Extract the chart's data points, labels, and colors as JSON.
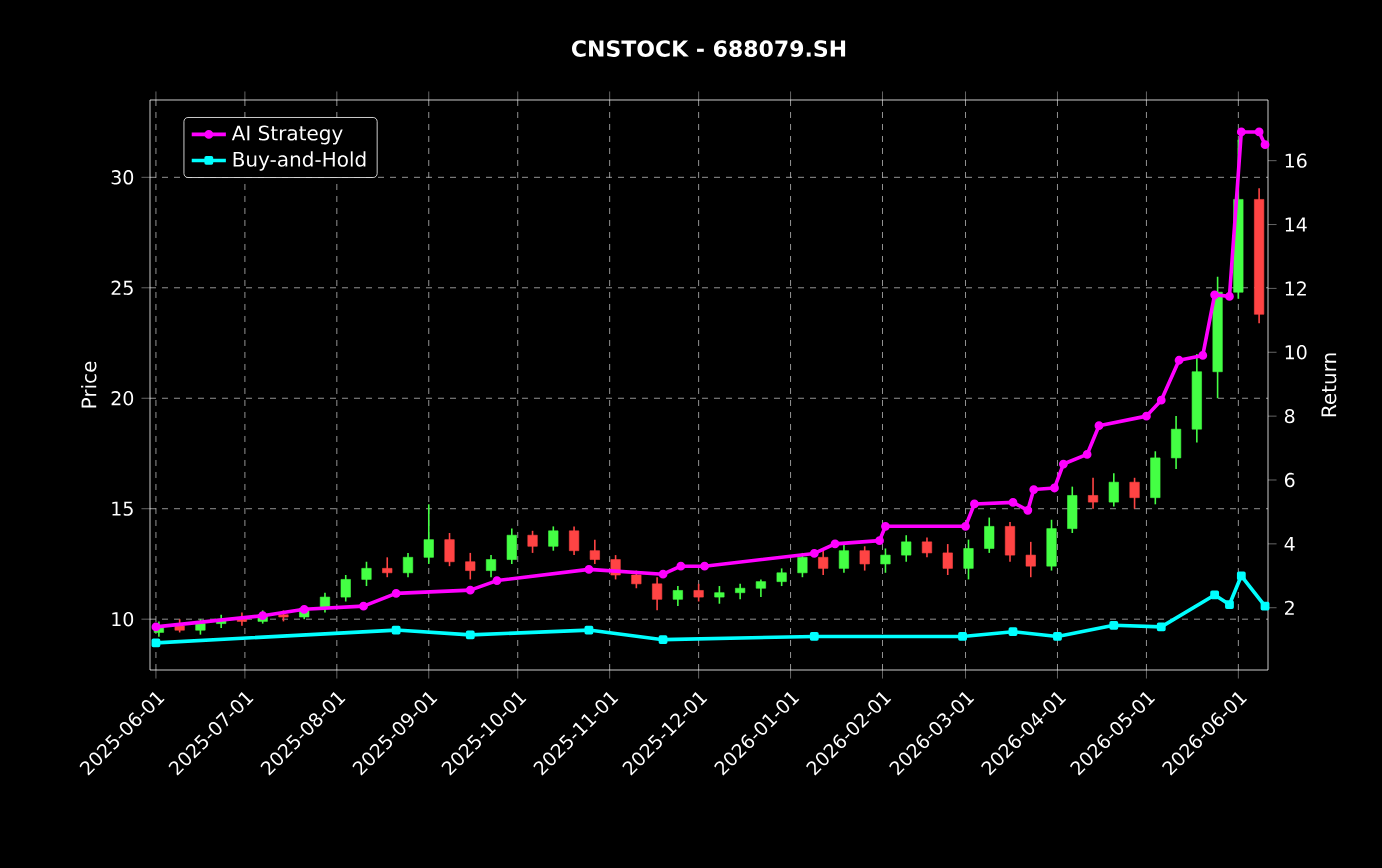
{
  "chart_data": {
    "type": "candlestick",
    "title": "CNSTOCK - 688079.SH",
    "ylabel": "Price",
    "y2label": "Return",
    "x": [
      "2025-06-02",
      "2025-06-09",
      "2025-06-16",
      "2025-06-23",
      "2025-06-30",
      "2025-07-07",
      "2025-07-14",
      "2025-07-21",
      "2025-07-28",
      "2025-08-04",
      "2025-08-11",
      "2025-08-18",
      "2025-08-25",
      "2025-09-01",
      "2025-09-08",
      "2025-09-15",
      "2025-09-22",
      "2025-09-29",
      "2025-10-06",
      "2025-10-13",
      "2025-10-20",
      "2025-10-27",
      "2025-11-03",
      "2025-11-10",
      "2025-11-17",
      "2025-11-24",
      "2025-12-01",
      "2025-12-08",
      "2025-12-15",
      "2025-12-22",
      "2025-12-29",
      "2026-01-05",
      "2026-01-12",
      "2026-01-19",
      "2026-01-26",
      "2026-02-02",
      "2026-02-09",
      "2026-02-16",
      "2026-02-23",
      "2026-03-02",
      "2026-03-09",
      "2026-03-16",
      "2026-03-23",
      "2026-03-30",
      "2026-04-06",
      "2026-04-13",
      "2026-04-20",
      "2026-04-27",
      "2026-05-04",
      "2026-05-11",
      "2026-05-18",
      "2026-05-25",
      "2026-06-01",
      "2026-06-08"
    ],
    "ohlc": [
      [
        9.4,
        9.9,
        9.2,
        9.7
      ],
      [
        9.7,
        10.0,
        9.4,
        9.5
      ],
      [
        9.5,
        10.0,
        9.3,
        9.8
      ],
      [
        9.8,
        10.2,
        9.6,
        10.0
      ],
      [
        10.0,
        10.3,
        9.7,
        9.9
      ],
      [
        9.9,
        10.4,
        9.8,
        10.2
      ],
      [
        10.2,
        10.4,
        9.9,
        10.1
      ],
      [
        10.1,
        10.6,
        10.0,
        10.5
      ],
      [
        10.5,
        11.2,
        10.3,
        11.0
      ],
      [
        11.0,
        12.0,
        10.8,
        11.8
      ],
      [
        11.8,
        12.6,
        11.5,
        12.3
      ],
      [
        12.3,
        12.8,
        11.9,
        12.1
      ],
      [
        12.1,
        13.0,
        11.9,
        12.8
      ],
      [
        12.8,
        15.2,
        12.5,
        13.6
      ],
      [
        13.6,
        13.9,
        12.4,
        12.6
      ],
      [
        12.6,
        13.0,
        11.8,
        12.2
      ],
      [
        12.2,
        12.9,
        11.9,
        12.7
      ],
      [
        12.7,
        14.1,
        12.5,
        13.8
      ],
      [
        13.8,
        14.0,
        13.0,
        13.3
      ],
      [
        13.3,
        14.2,
        13.1,
        14.0
      ],
      [
        14.0,
        14.2,
        12.9,
        13.1
      ],
      [
        13.1,
        13.6,
        12.5,
        12.7
      ],
      [
        12.7,
        12.9,
        11.8,
        12.0
      ],
      [
        12.0,
        12.2,
        11.4,
        11.6
      ],
      [
        11.6,
        11.9,
        10.4,
        10.9
      ],
      [
        10.9,
        11.5,
        10.6,
        11.3
      ],
      [
        11.3,
        11.6,
        10.8,
        11.0
      ],
      [
        11.0,
        11.5,
        10.7,
        11.2
      ],
      [
        11.2,
        11.6,
        10.9,
        11.4
      ],
      [
        11.4,
        11.8,
        11.0,
        11.7
      ],
      [
        11.7,
        12.3,
        11.5,
        12.1
      ],
      [
        12.1,
        13.0,
        11.9,
        12.8
      ],
      [
        12.8,
        13.1,
        12.0,
        12.3
      ],
      [
        12.3,
        13.4,
        12.1,
        13.1
      ],
      [
        13.1,
        13.3,
        12.2,
        12.5
      ],
      [
        12.5,
        13.2,
        12.1,
        12.9
      ],
      [
        12.9,
        13.8,
        12.6,
        13.5
      ],
      [
        13.5,
        13.7,
        12.8,
        13.0
      ],
      [
        13.0,
        13.4,
        12.0,
        12.3
      ],
      [
        12.3,
        13.6,
        11.8,
        13.2
      ],
      [
        13.2,
        14.6,
        13.0,
        14.2
      ],
      [
        14.2,
        14.4,
        12.6,
        12.9
      ],
      [
        12.9,
        13.5,
        11.9,
        12.4
      ],
      [
        12.4,
        14.5,
        12.2,
        14.1
      ],
      [
        14.1,
        16.0,
        13.9,
        15.6
      ],
      [
        15.6,
        16.4,
        15.0,
        15.3
      ],
      [
        15.3,
        16.6,
        15.1,
        16.2
      ],
      [
        16.2,
        16.4,
        15.0,
        15.5
      ],
      [
        15.5,
        17.6,
        15.2,
        17.3
      ],
      [
        17.3,
        19.2,
        16.8,
        18.6
      ],
      [
        18.6,
        22.0,
        18.0,
        21.2
      ],
      [
        21.2,
        25.5,
        20.0,
        24.8
      ],
      [
        24.8,
        31.7,
        24.5,
        29.0
      ],
      [
        29.0,
        29.5,
        23.4,
        23.8
      ]
    ],
    "colors": [
      "#44ff44",
      "#ff4444",
      "#44ff44",
      "#44ff44",
      "#ff4444",
      "#44ff44",
      "#ff4444",
      "#44ff44",
      "#44ff44",
      "#44ff44",
      "#44ff44",
      "#ff4444",
      "#44ff44",
      "#44ff44",
      "#ff4444",
      "#ff4444",
      "#44ff44",
      "#44ff44",
      "#ff4444",
      "#44ff44",
      "#ff4444",
      "#ff4444",
      "#ff4444",
      "#ff4444",
      "#ff4444",
      "#44ff44",
      "#ff4444",
      "#44ff44",
      "#44ff44",
      "#44ff44",
      "#44ff44",
      "#44ff44",
      "#ff4444",
      "#44ff44",
      "#ff4444",
      "#44ff44",
      "#44ff44",
      "#ff4444",
      "#ff4444",
      "#44ff44",
      "#44ff44",
      "#ff4444",
      "#ff4444",
      "#44ff44",
      "#44ff44",
      "#ff4444",
      "#44ff44",
      "#ff4444",
      "#44ff44",
      "#44ff44",
      "#44ff44",
      "#44ff44",
      "#44ff44",
      "#ff4444"
    ],
    "series": [
      {
        "name": "AI Strategy",
        "type": "line",
        "axis": "y2",
        "color": "#ff00ff",
        "marker": "circle",
        "x": [
          "2025-06-01",
          "2025-07-07",
          "2025-07-21",
          "2025-08-10",
          "2025-08-21",
          "2025-09-15",
          "2025-09-24",
          "2025-10-25",
          "2025-11-19",
          "2025-11-25",
          "2025-12-03",
          "2026-01-09",
          "2026-01-16",
          "2026-01-31",
          "2026-02-02",
          "2026-03-01",
          "2026-03-04",
          "2026-03-17",
          "2026-03-22",
          "2026-03-24",
          "2026-03-31",
          "2026-04-03",
          "2026-04-11",
          "2026-04-15",
          "2026-05-01",
          "2026-05-06",
          "2026-05-12",
          "2026-05-20",
          "2026-05-24",
          "2026-05-29",
          "2026-06-02",
          "2026-06-08",
          "2026-06-10"
        ],
        "values": [
          1.4,
          1.75,
          1.95,
          2.05,
          2.45,
          2.55,
          2.85,
          3.2,
          3.05,
          3.3,
          3.3,
          3.7,
          4.0,
          4.1,
          4.55,
          4.55,
          5.25,
          5.3,
          5.05,
          5.7,
          5.75,
          6.5,
          6.8,
          7.7,
          8.0,
          8.5,
          9.75,
          9.9,
          11.8,
          11.75,
          16.9,
          16.9,
          16.5
        ]
      },
      {
        "name": "Buy-and-Hold",
        "type": "line",
        "axis": "y2",
        "color": "#00ffff",
        "marker": "square",
        "x": [
          "2025-06-01",
          "2025-08-21",
          "2025-09-15",
          "2025-10-25",
          "2025-11-19",
          "2026-01-09",
          "2026-02-28",
          "2026-03-17",
          "2026-04-01",
          "2026-04-20",
          "2026-05-06",
          "2026-05-24",
          "2026-05-29",
          "2026-06-02",
          "2026-06-10"
        ],
        "values": [
          0.9,
          1.3,
          1.15,
          1.3,
          1.0,
          1.1,
          1.1,
          1.25,
          1.1,
          1.45,
          1.4,
          2.4,
          2.1,
          3.0,
          2.05
        ]
      }
    ],
    "xlim": [
      "2025-05-30",
      "2026-06-11"
    ],
    "xticks": [
      "2025-06-01",
      "2025-07-01",
      "2025-08-01",
      "2025-09-01",
      "2025-10-01",
      "2025-11-01",
      "2025-12-01",
      "2026-01-01",
      "2026-02-01",
      "2026-03-01",
      "2026-04-01",
      "2026-05-01",
      "2026-06-01"
    ],
    "ylim": [
      7.7,
      33.5
    ],
    "yticks": [
      10,
      15,
      20,
      25,
      30
    ],
    "y2lim": [
      0.05,
      17.9
    ],
    "y2ticks": [
      2,
      4,
      6,
      8,
      10,
      12,
      14,
      16
    ],
    "grid": true,
    "legend": "top left"
  }
}
